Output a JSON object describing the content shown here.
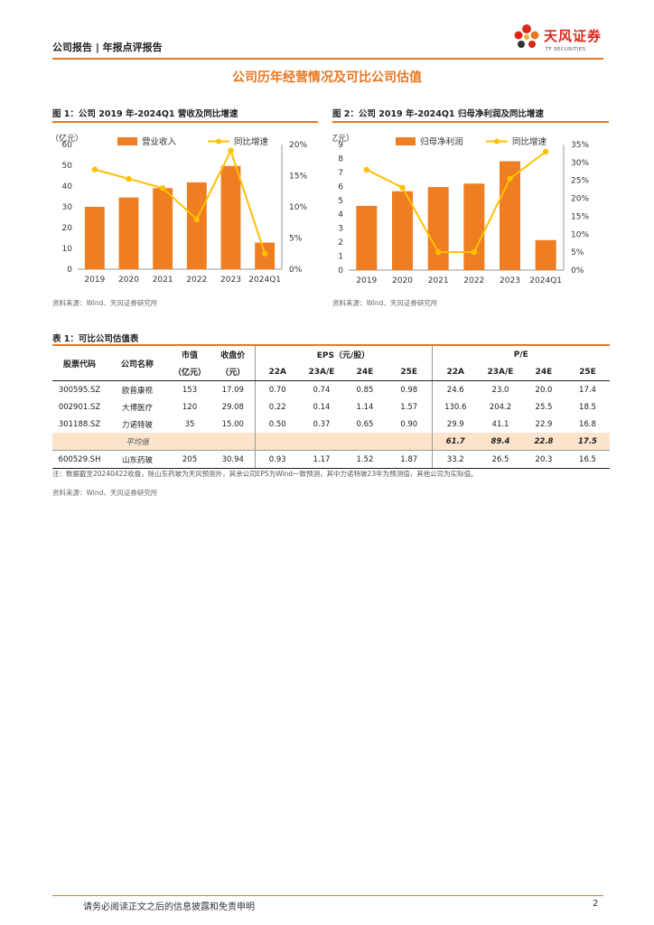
{
  "header": {
    "left": "公司报告 | 年报点评报告",
    "logo_cn": "天风证券",
    "logo_en": "TF SECURITIES"
  },
  "section_title": "公司历年经营情况及可比公司估值",
  "colors": {
    "accent": "#e87722",
    "bar": "#ef7d22",
    "line": "#ffc000",
    "logo_red": "#d9281c",
    "avg_row": "#fbe3cc"
  },
  "figure1": {
    "title": "图 1：公司 2019 年-2024Q1 营收及同比增速",
    "source": "资料来源：Wind、天风证券研究所"
  },
  "figure2": {
    "title": "图 2：公司 2019 年-2024Q1 归母净利润及同比增速",
    "source": "资料来源：Wind、天风证券研究所"
  },
  "chart_data": [
    {
      "type": "bar",
      "categories": [
        "2019",
        "2020",
        "2021",
        "2022",
        "2023",
        "2024Q1"
      ],
      "unit_label": "（亿元）",
      "series": [
        {
          "name": "营业收入",
          "type": "bar",
          "axis": "left",
          "values": [
            30,
            34.5,
            39,
            41.8,
            49.7,
            12.8
          ]
        },
        {
          "name": "同比增速",
          "type": "line",
          "axis": "right",
          "values": [
            16.0,
            14.5,
            13.0,
            8.0,
            19.0,
            2.5
          ]
        }
      ],
      "ylim_left": [
        0,
        60
      ],
      "yticks_left": [
        "0",
        "10",
        "20",
        "30",
        "40",
        "50",
        "60"
      ],
      "ylim_right": [
        0,
        20
      ],
      "yticks_right": [
        "0%",
        "5%",
        "10%",
        "15%",
        "20%"
      ],
      "legend": "top"
    },
    {
      "type": "bar",
      "categories": [
        "2019",
        "2020",
        "2021",
        "2022",
        "2023",
        "2024Q1"
      ],
      "unit_label": "（亿元）",
      "series": [
        {
          "name": "归母净利润",
          "type": "bar",
          "axis": "left",
          "values": [
            4.6,
            5.65,
            5.95,
            6.2,
            7.8,
            2.15
          ]
        },
        {
          "name": "同比增速",
          "type": "line",
          "axis": "right",
          "values": [
            28,
            23,
            5,
            5,
            25.5,
            33
          ]
        }
      ],
      "ylim_left": [
        0,
        9
      ],
      "yticks_left": [
        "0",
        "1",
        "2",
        "3",
        "4",
        "5",
        "6",
        "7",
        "8",
        "9"
      ],
      "ylim_right": [
        0,
        35
      ],
      "yticks_right": [
        "0%",
        "5%",
        "10%",
        "15%",
        "20%",
        "25%",
        "30%",
        "35%"
      ],
      "legend": "top"
    }
  ],
  "table": {
    "title": "表 1：可比公司估值表",
    "headers": {
      "code": "股票代码",
      "name": "公司名称",
      "mktcap": "市值",
      "mktcap_unit": "（亿元）",
      "close": "收盘价",
      "close_unit": "（元）",
      "eps_group": "EPS（元/股）",
      "pe_group": "P/E",
      "years": [
        "22A",
        "23A/E",
        "24E",
        "25E"
      ]
    },
    "rows": [
      {
        "code": "300595.SZ",
        "name": "欧普康视",
        "mktcap": "153",
        "close": "17.09",
        "eps": [
          "0.70",
          "0.74",
          "0.85",
          "0.98"
        ],
        "pe": [
          "24.6",
          "23.0",
          "20.0",
          "17.4"
        ]
      },
      {
        "code": "002901.SZ",
        "name": "大博医疗",
        "mktcap": "120",
        "close": "29.08",
        "eps": [
          "0.22",
          "0.14",
          "1.14",
          "1.57"
        ],
        "pe": [
          "130.6",
          "204.2",
          "25.5",
          "18.5"
        ]
      },
      {
        "code": "301188.SZ",
        "name": "力诺特玻",
        "mktcap": "35",
        "close": "15.00",
        "eps": [
          "0.50",
          "0.37",
          "0.65",
          "0.90"
        ],
        "pe": [
          "29.9",
          "41.1",
          "22.9",
          "16.8"
        ]
      }
    ],
    "avg": {
      "label": "平均值",
      "pe": [
        "61.7",
        "89.4",
        "22.8",
        "17.5"
      ]
    },
    "subject": {
      "code": "600529.SH",
      "name": "山东药玻",
      "mktcap": "205",
      "close": "30.94",
      "eps": [
        "0.93",
        "1.17",
        "1.52",
        "1.87"
      ],
      "pe": [
        "33.2",
        "26.5",
        "20.3",
        "16.5"
      ]
    },
    "note": "注：数据截至20240422收盘，除山东药玻为天风预测外，其余公司EPS为Wind一致预测，其中力诺特玻23年为预测值，其他公司为实际值。",
    "source": "资料来源：Wind、天风证券研究所"
  },
  "footer": {
    "text": "请务必阅读正文之后的信息披露和免责申明",
    "page": "2"
  }
}
